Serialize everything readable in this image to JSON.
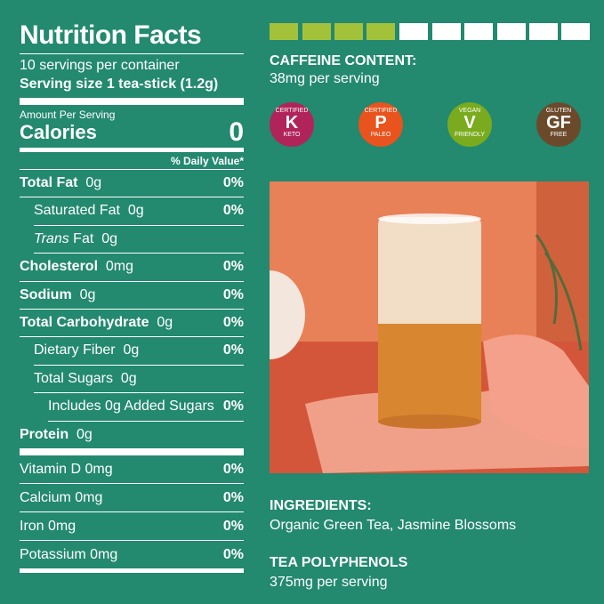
{
  "nutrition": {
    "title": "Nutrition Facts",
    "servings": "10 servings per container",
    "serving_size": "Serving size 1 tea-stick (1.2g)",
    "amount_per_serving": "Amount Per Serving",
    "calories_label": "Calories",
    "calories_value": "0",
    "daily_value_header": "% Daily Value*",
    "nutrients": [
      {
        "label": "Total Fat",
        "amount": "0g",
        "dv": "0%",
        "sub": [
          {
            "label": "Saturated Fat",
            "amount": "0g",
            "dv": "0%"
          },
          {
            "label_italic": "Trans",
            "label": "Fat",
            "amount": "0g"
          }
        ]
      },
      {
        "label": "Cholesterol",
        "amount": "0mg",
        "dv": "0%"
      },
      {
        "label": "Sodium",
        "amount": "0g",
        "dv": "0%"
      },
      {
        "label": "Total Carbohydrate",
        "amount": "0g",
        "dv": "0%",
        "sub": [
          {
            "label": "Dietary Fiber",
            "amount": "0g",
            "dv": "0%"
          },
          {
            "label": "Total Sugars",
            "amount": "0g",
            "sub": [
              {
                "label": "Includes 0g Added Sugars",
                "dv": "0%"
              }
            ]
          }
        ]
      },
      {
        "label": "Protein",
        "amount": "0g"
      }
    ],
    "vitamins": [
      {
        "label": "Vitamin D",
        "amount": "0mg",
        "dv": "0%"
      },
      {
        "label": "Calcium",
        "amount": "0mg",
        "dv": "0%"
      },
      {
        "label": "Iron",
        "amount": "0mg",
        "dv": "0%"
      },
      {
        "label": "Potassium",
        "amount": "0mg",
        "dv": "0%"
      }
    ]
  },
  "caffeine": {
    "title": "CAFFEINE CONTENT:",
    "text": "38mg per serving"
  },
  "badges": [
    {
      "top": "CERTIFIED",
      "mark": "K",
      "bottom": "KETO",
      "color": "#b0245a"
    },
    {
      "top": "CERTIFIED",
      "mark": "P",
      "bottom": "PALEO",
      "color": "#e8531e"
    },
    {
      "top": "VEGAN",
      "mark": "V",
      "bottom": "FRIENDLY",
      "color": "#7aab1e"
    },
    {
      "top": "GLUTEN",
      "mark": "GF",
      "bottom": "FREE",
      "color": "#6b4a2b"
    }
  ],
  "ingredients": {
    "title": "INGREDIENTS:",
    "text": "Organic Green Tea, Jasmine Blossoms"
  },
  "polyphenols": {
    "title": "TEA POLYPHENOLS",
    "text": "375mg per serving"
  }
}
